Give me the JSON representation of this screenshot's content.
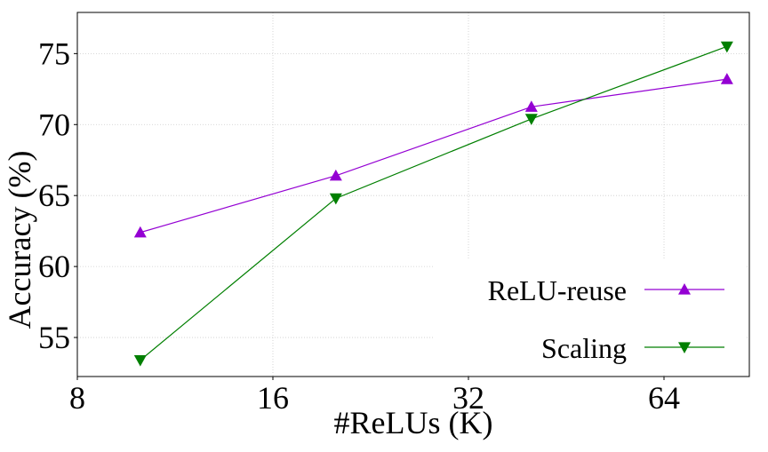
{
  "chart_data": {
    "type": "line",
    "x_label": "#ReLUs (K)",
    "y_label": "Accuracy (%)",
    "x": [
      10,
      20,
      40,
      80
    ],
    "series": [
      {
        "name": "ReLU-reuse",
        "color": "#9400d3",
        "marker": "triangle-up",
        "values": [
          62.4,
          66.4,
          71.25,
          73.2
        ]
      },
      {
        "name": "Scaling",
        "color": "#007f00",
        "marker": "triangle-down",
        "values": [
          53.4,
          64.8,
          70.4,
          75.5
        ]
      }
    ],
    "xscale": "log2",
    "xlim": [
      8,
      86.6
    ],
    "xticks": [
      8,
      16,
      32,
      64
    ],
    "ylim": [
      52.25,
      77.9
    ],
    "yticks": [
      55,
      60,
      65,
      70,
      75
    ],
    "grid": true,
    "legend": "lower right"
  }
}
